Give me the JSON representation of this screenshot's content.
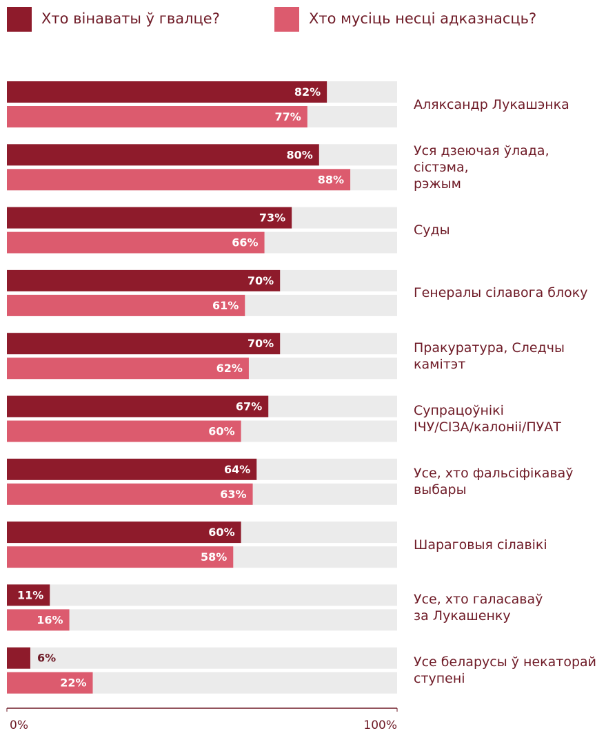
{
  "chart_data": {
    "type": "bar",
    "orientation": "horizontal",
    "categories": [
      "Аляксандр Лукашэнка",
      "Уся дзеючая ўлада, сістэма,\nрэжым",
      "Суды",
      "Генералы сілавога блоку",
      "Пракуратура, Следчы\nкамітэт",
      "Супрацоўнікі\nІЧУ/СІЗА/калоніі/ПУАТ",
      "Усе, хто фальсіфікаваў\nвыбары",
      "Шараговыя сілавікі",
      "Усе, хто галасаваў\nза Лукашенку",
      "Усе беларусы ў некаторай\nступені"
    ],
    "series": [
      {
        "name": "Хто вінаваты ў гвалце?",
        "color": "#8e1b2b",
        "values": [
          82,
          80,
          73,
          70,
          70,
          67,
          64,
          60,
          11,
          6
        ],
        "value_labels": [
          "82%",
          "80%",
          "73%",
          "70%",
          "70%",
          "67%",
          "64%",
          "60%",
          "11%",
          "6%"
        ]
      },
      {
        "name": "Хто мусіць несці адказнасць?",
        "color": "#dc5b6e",
        "values": [
          77,
          88,
          66,
          61,
          62,
          60,
          63,
          58,
          16,
          22
        ],
        "value_labels": [
          "77%",
          "88%",
          "66%",
          "61%",
          "62%",
          "60%",
          "63%",
          "58%",
          "16%",
          "22%"
        ]
      }
    ],
    "xlim": [
      0,
      100
    ],
    "xticks": [
      {
        "value": 0,
        "label": "0%"
      },
      {
        "value": 100,
        "label": "100%"
      }
    ],
    "track_color": "#ebebeb"
  }
}
